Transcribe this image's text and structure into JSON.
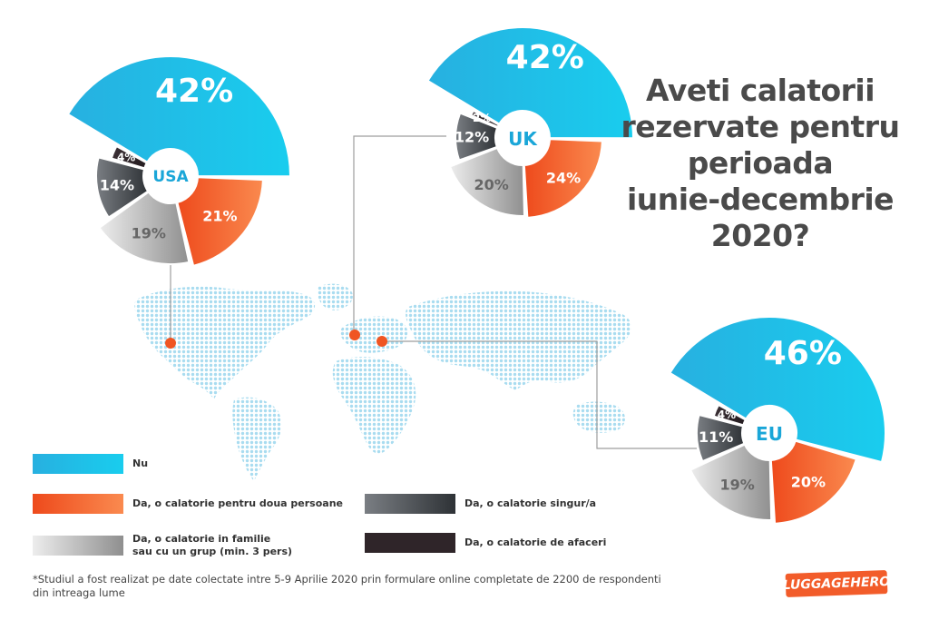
{
  "title_lines": [
    "Aveti calatorii",
    "rezervate pentru",
    "perioada",
    "iunie-decembrie",
    "2020?"
  ],
  "colors": {
    "nu": "#1cc7ea",
    "doua": "#f3632b",
    "singur": "#53575c",
    "familie": "#c4c4c4",
    "afaceri": "#2b2226",
    "connector": "#9e9e9e",
    "dot": "#f05522",
    "map": "#bfe6f4"
  },
  "legend": {
    "nu": "Nu",
    "doua": "Da, o calatorie pentru doua persoane",
    "singur": "Da, o calatorie singur/a",
    "familie_line1": "Da, o calatorie in familie",
    "familie_line2": "sau cu un grup (min. 3 pers)",
    "afaceri": "Da, o calatorie de afaceri"
  },
  "chart_data": [
    {
      "type": "pie",
      "region": "USA",
      "categories": [
        "Nu",
        "Da, o calatorie pentru doua persoane",
        "Da, o calatorie in familie sau cu un grup (min. 3 pers)",
        "Da, o calatorie singur/a",
        "Da, o calatorie de afaceri"
      ],
      "values": [
        42,
        21,
        19,
        14,
        4
      ],
      "labels": [
        "42%",
        "21%",
        "19%",
        "14%",
        "4%"
      ]
    },
    {
      "type": "pie",
      "region": "UK",
      "categories": [
        "Nu",
        "Da, o calatorie pentru doua persoane",
        "Da, o calatorie in familie sau cu un grup (min. 3 pers)",
        "Da, o calatorie singur/a",
        "Da, o calatorie de afaceri"
      ],
      "values": [
        42,
        24,
        20,
        12,
        2
      ],
      "labels": [
        "42%",
        "24%",
        "20%",
        "12%",
        "2%"
      ]
    },
    {
      "type": "pie",
      "region": "EU",
      "categories": [
        "Nu",
        "Da, o calatorie pentru doua persoane",
        "Da, o calatorie in familie sau cu un grup (min. 3 pers)",
        "Da, o calatorie singur/a",
        "Da, o calatorie de afaceri"
      ],
      "values": [
        46,
        20,
        19,
        11,
        4
      ],
      "labels": [
        "46%",
        "20%",
        "19%",
        "11%",
        "4%"
      ]
    }
  ],
  "footnote_line1": "*Studiul a fost realizat pe date colectate intre 5-9 Aprilie 2020 prin formulare online completate de 2200 de respondenti",
  "footnote_line2": "din intreaga lume",
  "logo_text": "LUGGAGEHERO"
}
